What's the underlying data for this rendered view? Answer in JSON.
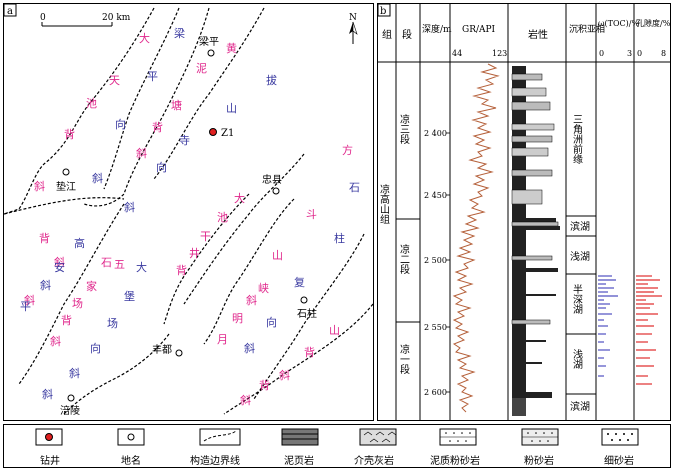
{
  "figure": {
    "panel_a_label": "a",
    "panel_b_label": "b"
  },
  "map": {
    "scale_zero": "0",
    "scale_km": "20 km",
    "north": "N",
    "places": {
      "liangping": "梁平",
      "z1": "Z1",
      "dianjiang": "垫江",
      "zhongxian": "忠县",
      "shizhu": "石柱",
      "fengdu": "丰都",
      "fuling": "涪陵"
    },
    "pink_labels": [
      "大",
      "黄",
      "泥",
      "天",
      "池",
      "背",
      "斜",
      "塘",
      "背",
      "斜",
      "方",
      "斗",
      "山",
      "大",
      "池",
      "干",
      "井",
      "背",
      "斜",
      "明",
      "月",
      "峡",
      "背",
      "斜",
      "斜",
      "山",
      "背",
      "斜",
      "石",
      "家",
      "场",
      "背",
      "斜",
      "五",
      "背",
      "斜"
    ],
    "blue_labels": [
      "梁",
      "平",
      "向",
      "斜",
      "拔",
      "山",
      "寺",
      "向",
      "斜",
      "石",
      "柱",
      "复",
      "向",
      "斜",
      "高",
      "安",
      "大",
      "堡",
      "场",
      "向",
      "斜",
      "斜",
      "平",
      "斜"
    ]
  },
  "strat": {
    "headers": {
      "group": "组",
      "section": "段",
      "depth": "深度/m",
      "gr": "GR/API",
      "gr_min": "44",
      "gr_max": "123",
      "lith": "岩性",
      "facies": "沉积亚相",
      "toc": "ω(TOC)/%",
      "toc_min": "0",
      "toc_max": "3",
      "por": "孔隙度/%",
      "por_min": "0",
      "por_max": "8"
    },
    "group_name": "凉高山组",
    "sections": [
      "凉三段",
      "凉二段",
      "凉一段"
    ],
    "depth_ticks": [
      "2 400",
      "2 450",
      "2 500",
      "2 550",
      "2 600"
    ],
    "facies": [
      "三角洲前缘",
      "滨湖",
      "浅湖",
      "半深湖",
      "浅湖",
      "滨湖"
    ]
  },
  "legend": {
    "items": [
      "钻井",
      "地名",
      "构造边界线",
      "泥页岩",
      "介壳灰岩",
      "泥质粉砂岩",
      "粉砂岩",
      "细砂岩"
    ]
  },
  "colors": {
    "pink": "#e0288c",
    "blue": "#3a3aa0",
    "gr_curve": "#b5603a",
    "well_red": "#e02020",
    "toc_bar": "#5050c0",
    "por_bar": "#e03030"
  }
}
